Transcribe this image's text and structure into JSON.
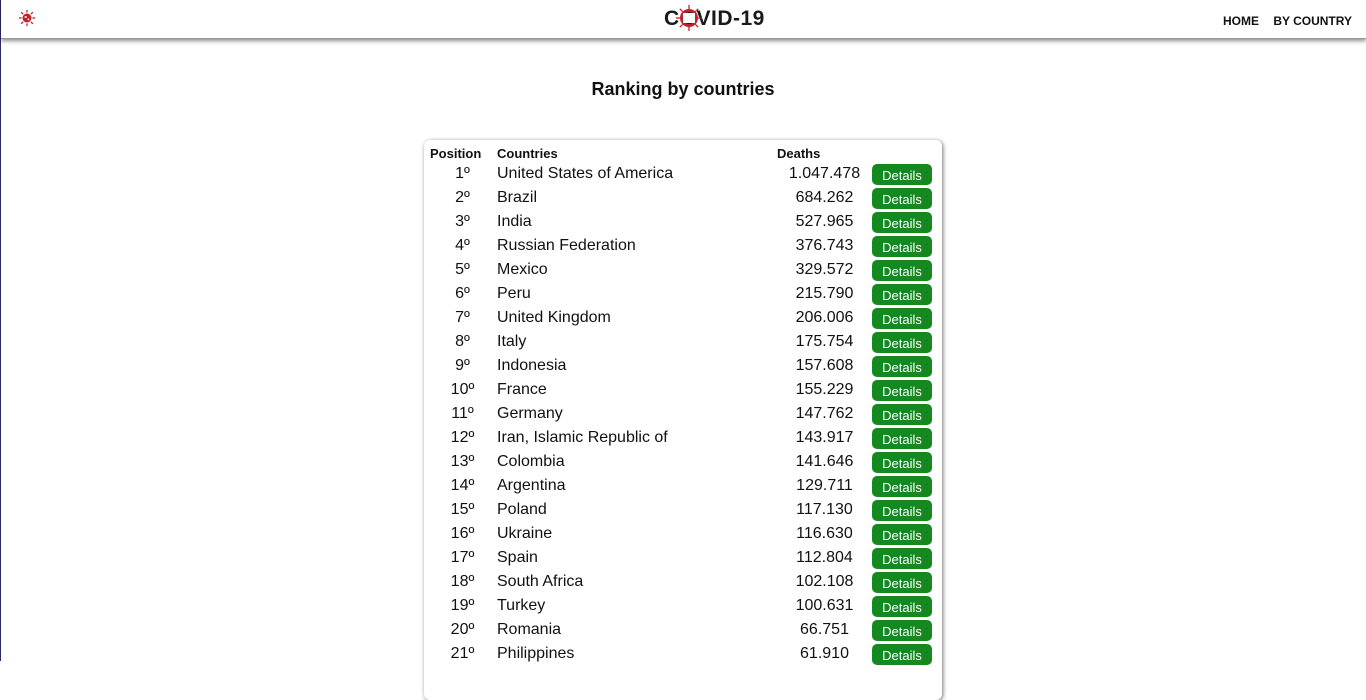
{
  "header": {
    "brand": "COVID-19",
    "nav": [
      {
        "label": "HOME"
      },
      {
        "label": "BY COUNTRY"
      }
    ],
    "accent_color": "#c0202a"
  },
  "page": {
    "title": "Ranking by countries"
  },
  "table": {
    "columns": {
      "position": "Position",
      "countries": "Countries",
      "deaths": "Deaths"
    },
    "button_label": "Details",
    "button_color": "#15891f",
    "rows": [
      {
        "pos": "1º",
        "country": "United States of America",
        "deaths": "1.047.478"
      },
      {
        "pos": "2º",
        "country": "Brazil",
        "deaths": "684.262"
      },
      {
        "pos": "3º",
        "country": "India",
        "deaths": "527.965"
      },
      {
        "pos": "4º",
        "country": "Russian Federation",
        "deaths": "376.743"
      },
      {
        "pos": "5º",
        "country": "Mexico",
        "deaths": "329.572"
      },
      {
        "pos": "6º",
        "country": "Peru",
        "deaths": "215.790"
      },
      {
        "pos": "7º",
        "country": "United Kingdom",
        "deaths": "206.006"
      },
      {
        "pos": "8º",
        "country": "Italy",
        "deaths": "175.754"
      },
      {
        "pos": "9º",
        "country": "Indonesia",
        "deaths": "157.608"
      },
      {
        "pos": "10º",
        "country": "France",
        "deaths": "155.229"
      },
      {
        "pos": "11º",
        "country": "Germany",
        "deaths": "147.762"
      },
      {
        "pos": "12º",
        "country": "Iran, Islamic Republic of",
        "deaths": "143.917"
      },
      {
        "pos": "13º",
        "country": "Colombia",
        "deaths": "141.646"
      },
      {
        "pos": "14º",
        "country": "Argentina",
        "deaths": "129.711"
      },
      {
        "pos": "15º",
        "country": "Poland",
        "deaths": "117.130"
      },
      {
        "pos": "16º",
        "country": "Ukraine",
        "deaths": "116.630"
      },
      {
        "pos": "17º",
        "country": "Spain",
        "deaths": "112.804"
      },
      {
        "pos": "18º",
        "country": "South Africa",
        "deaths": "102.108"
      },
      {
        "pos": "19º",
        "country": "Turkey",
        "deaths": "100.631"
      },
      {
        "pos": "20º",
        "country": "Romania",
        "deaths": "66.751"
      },
      {
        "pos": "21º",
        "country": "Philippines",
        "deaths": "61.910"
      }
    ]
  }
}
